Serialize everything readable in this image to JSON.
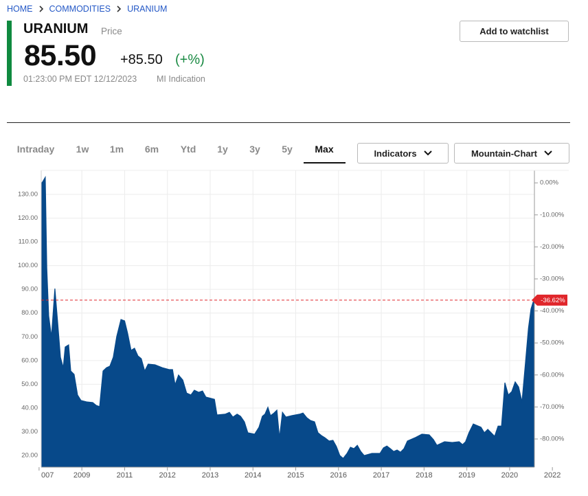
{
  "breadcrumb": [
    "HOME",
    "COMMODITIES",
    "URANIUM"
  ],
  "header": {
    "symbol": "URANIUM",
    "label": "Price",
    "price": "85.50",
    "change": "+85.50",
    "change_pct": "(+%)",
    "timestamp": "01:23:00 PM EDT 12/12/2023",
    "source": "MI Indication",
    "watchlist_button": "Add to watchlist"
  },
  "tabs": [
    "Intraday",
    "1w",
    "1m",
    "6m",
    "Ytd",
    "1y",
    "3y",
    "5y",
    "Max"
  ],
  "active_tab": "Max",
  "buttons": [
    "Indicators",
    "Mountain-Chart"
  ],
  "chart_data": {
    "type": "area",
    "grid": true,
    "series": [
      {
        "color": "#07498a",
        "x": [
          2007.1,
          2007.16,
          2007.29,
          2007.36,
          2007.45,
          2007.58,
          2007.74,
          2007.87,
          2008.0,
          2008.13,
          2008.22,
          2008.38,
          2008.48,
          2008.64,
          2008.8,
          2008.96,
          2009.22,
          2009.51,
          2009.67,
          2009.83,
          2009.99,
          2010.15,
          2010.31,
          2010.47,
          2010.63,
          2010.83,
          2011.0,
          2011.07,
          2011.15,
          2011.23,
          2011.31,
          2011.39,
          2011.47,
          2011.55,
          2011.71,
          2011.88,
          2012.04,
          2012.12,
          2012.18,
          2012.26,
          2012.36,
          2012.45,
          2012.55,
          2012.63,
          2012.73,
          2012.82,
          2012.9,
          2013.1,
          2013.16,
          2013.35,
          2013.45,
          2013.53,
          2013.63,
          2013.71,
          2013.8,
          2013.88,
          2014.04,
          2014.14,
          2014.22,
          2014.28,
          2014.35,
          2014.41,
          2014.48,
          2014.56,
          2014.62,
          2014.69,
          2014.77,
          2014.91,
          2015.09,
          2015.17,
          2015.26,
          2015.34,
          2015.44,
          2015.52,
          2015.6,
          2015.68,
          2015.78,
          2015.87,
          2015.95,
          2016.03,
          2016.11,
          2016.2,
          2016.28,
          2016.36,
          2016.44,
          2016.52,
          2016.6,
          2016.78,
          2016.97,
          2017.05,
          2017.13,
          2017.21,
          2017.29,
          2017.37,
          2017.45,
          2017.53,
          2017.61,
          2017.79,
          2017.95,
          2018.12,
          2018.22,
          2018.3,
          2018.48,
          2018.66,
          2018.82,
          2018.9,
          2018.97,
          2019.05,
          2019.15,
          2019.33,
          2019.41,
          2019.49,
          2019.65,
          2019.73,
          2019.81,
          2019.89,
          2019.97,
          2020.1,
          2020.26,
          2020.42,
          2020.58,
          2020.75,
          2020.88,
          2021.0,
          2021.1,
          2021.16
        ],
        "values": [
          134.5,
          135.2,
          137.2,
          99,
          78.8,
          70,
          90.3,
          75.9,
          61.4,
          57,
          65.7,
          66.6,
          55.6,
          54.2,
          45.5,
          43.2,
          42.6,
          42.3,
          41.1,
          40.6,
          55.6,
          57,
          57.6,
          61.4,
          70.1,
          77.3,
          76.7,
          71.5,
          64.3,
          65.2,
          62,
          60.8,
          55.6,
          58.5,
          58.2,
          57,
          56.2,
          56.2,
          49.8,
          53.9,
          51.8,
          46.3,
          45.5,
          47.5,
          46.6,
          47.2,
          44.6,
          43.7,
          37.1,
          37.4,
          38.2,
          36.2,
          37.4,
          36.5,
          34.2,
          29.6,
          29,
          31.9,
          36.5,
          37.4,
          40.3,
          36.8,
          37.7,
          39.1,
          27.5,
          38.2,
          36.2,
          36.8,
          37.4,
          37.9,
          35.9,
          34.8,
          34.2,
          29.6,
          28.4,
          27.5,
          26.1,
          26.4,
          23.8,
          20,
          18.8,
          20.9,
          23.5,
          22.9,
          24.3,
          21.7,
          20,
          20.9,
          20.9,
          23.2,
          24,
          22.9,
          21.7,
          22.3,
          21.4,
          22.9,
          26.1,
          27.5,
          29,
          28.7,
          26.7,
          24.3,
          25.8,
          25.5,
          25.8,
          24.6,
          25.8,
          29.6,
          33.3,
          31.9,
          29.6,
          31,
          28.1,
          32.4,
          32.4,
          50.7,
          45.5,
          46.9,
          51,
          48.9,
          42.6,
          59.9,
          73.6,
          81.7,
          84.6,
          85.5
        ]
      }
    ],
    "xlim": [
      2007.1,
      2021.16
    ],
    "xticks": [
      {
        "value": 2007,
        "label": "007"
      },
      2009,
      2011,
      2012,
      2013,
      2014,
      2015,
      2016,
      2017,
      2018,
      2019,
      2020,
      2022
    ],
    "ylim": [
      15.1,
      140.1
    ],
    "yticks": [
      {
        "value": 20,
        "label": "20.00"
      },
      {
        "value": 30,
        "label": "30.00"
      },
      {
        "value": 40,
        "label": "40.00"
      },
      {
        "value": 50,
        "label": "50.00"
      },
      {
        "value": 60,
        "label": "60.00"
      },
      {
        "value": 70,
        "label": "70.00"
      },
      {
        "value": 80,
        "label": "80.00"
      },
      {
        "value": 90,
        "label": "90.00"
      },
      {
        "value": 100,
        "label": "100.00"
      },
      {
        "value": 110,
        "label": "110.00"
      },
      {
        "value": 120,
        "label": "120.00"
      },
      {
        "value": 130,
        "label": "130.00"
      }
    ],
    "y2lim": [
      -88.8,
      3.9
    ],
    "y2ticks": [
      {
        "value": 0,
        "label": "0.00%"
      },
      {
        "value": -10,
        "label": "-10.00%"
      },
      {
        "value": -20,
        "label": "-20.00%"
      },
      {
        "value": -30,
        "label": "-30.00%"
      },
      {
        "value": -40,
        "label": "-40.00%"
      },
      {
        "value": -50,
        "label": "-50.00%"
      },
      {
        "value": -60,
        "label": "-60.00%"
      },
      {
        "value": -70,
        "label": "-70.00%"
      },
      {
        "value": -80,
        "label": "-80.00%"
      }
    ],
    "reference_line": {
      "value": -36.62,
      "label": "-36.62%",
      "axis": "y2",
      "color": "#e0262b"
    }
  }
}
